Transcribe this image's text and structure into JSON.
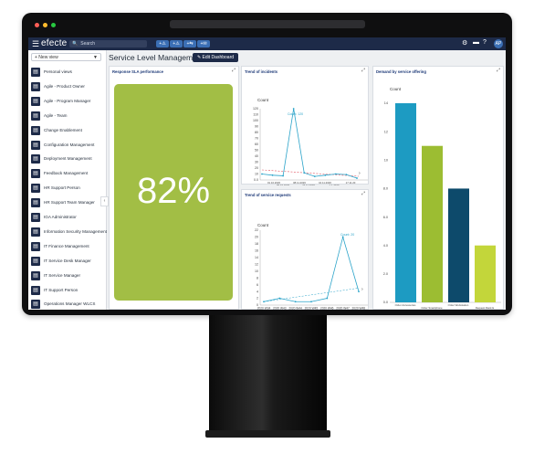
{
  "app": {
    "brand": "efecte",
    "search_placeholder": "Search",
    "quick_actions": [
      "+⚠",
      "+⚠",
      "+⇆",
      "+✉"
    ],
    "user_initials": "AP"
  },
  "sidebar": {
    "new_view_label": "+ New view",
    "items": [
      {
        "label": "Personal views"
      },
      {
        "label": "Agile - Product Owner"
      },
      {
        "label": "Agile - Program Manager"
      },
      {
        "label": "Agile - Team"
      },
      {
        "label": "Change Enablement"
      },
      {
        "label": "Configuration Management"
      },
      {
        "label": "Deployment Management"
      },
      {
        "label": "Feedback Management"
      },
      {
        "label": "HR Support Person"
      },
      {
        "label": "HR Support Team Manager"
      },
      {
        "label": "IGA Administrator"
      },
      {
        "label": "Information Security Management"
      },
      {
        "label": "IT Finance Management"
      },
      {
        "label": "IT Service Desk Manager"
      },
      {
        "label": "IT Service Manager"
      },
      {
        "label": "IT Support Person"
      },
      {
        "label": "Operations Manager WLCS"
      }
    ]
  },
  "main": {
    "page_title": "Service Level Management",
    "edit_button": "✎ Edit Dashboard"
  },
  "widgets": {
    "sla": {
      "title": "Response SLA performance",
      "value": "82%",
      "color": "#a2be45"
    },
    "incidents": {
      "title": "Trend of incidents",
      "ylabel": "Count",
      "yticks": [
        "120",
        "110",
        "100",
        "90",
        "80",
        "70",
        "60",
        "50",
        "40",
        "30",
        "20",
        "10",
        "0.0"
      ],
      "xticks_top": [
        "01.10.2020",
        "08.11.2020",
        "10.11.2020",
        "17.11.20"
      ],
      "xticks_bottom": [
        "06.10.2020",
        "24.11.2020",
        "1.1.2020"
      ],
      "peak_label": "Count: 120"
    },
    "requests": {
      "title": "Trend of service requests",
      "ylabel": "Count",
      "yticks": [
        "22",
        "20",
        "18",
        "16",
        "14",
        "12",
        "10",
        "8",
        "6",
        "4",
        "2",
        "0"
      ],
      "xticks": [
        "2020 W34",
        "2020 W43",
        "2020 W44",
        "2020 W45",
        "2020 W46",
        "2020 W47",
        "2020 W48"
      ],
      "peak_label": "Count: 20"
    },
    "demand": {
      "title": "Demand by service offering",
      "ylabel": "Count",
      "yticks": [
        "14",
        "12",
        "10",
        "8.0",
        "6.0",
        "4.0",
        "2.0",
        "0.0"
      ],
      "xlabels_top": [
        "Order Accessories",
        "Order Workstation"
      ],
      "xlabels_bottom": [
        "Order Smartphone",
        "Request Rank E"
      ]
    }
  },
  "chart_data": [
    {
      "type": "bar",
      "title": "Demand by service offering",
      "ylabel": "Count",
      "ylim": [
        0,
        14
      ],
      "categories": [
        "Order Accessories",
        "Order Smartphone",
        "Order Workstation",
        "Request Rank E"
      ],
      "values": [
        14,
        11,
        8,
        4
      ],
      "colors": [
        "#1d9bc2",
        "#9cbd32",
        "#0d4a6b",
        "#c3d63a"
      ]
    },
    {
      "type": "line",
      "title": "Trend of incidents",
      "ylabel": "Count",
      "ylim": [
        0,
        120
      ],
      "series": [
        {
          "values": [
            10,
            8,
            7,
            120,
            12,
            6,
            8,
            10,
            9,
            3
          ]
        }
      ]
    },
    {
      "type": "line",
      "title": "Trend of service requests",
      "ylabel": "Count",
      "ylim": [
        0,
        22
      ],
      "categories": [
        "2020 W34",
        "2020 W43",
        "2020 W44",
        "2020 W45",
        "2020 W46",
        "2020 W47",
        "2020 W48"
      ],
      "series": [
        {
          "values": [
            1,
            2,
            1,
            1,
            2,
            20,
            4
          ]
        }
      ]
    }
  ]
}
